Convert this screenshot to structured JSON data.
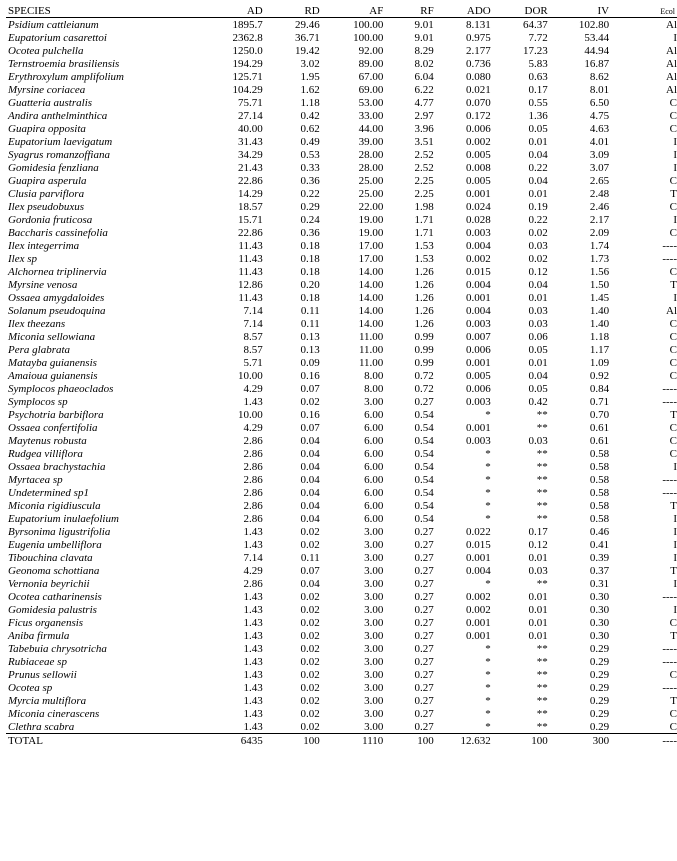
{
  "table": {
    "headers": {
      "species": "SPECIES",
      "ad": "AD",
      "rd": "RD",
      "af": "AF",
      "rf": "RF",
      "ado": "ADO",
      "dor": "DOR",
      "iv": "IV",
      "ecol": "Ecol"
    },
    "rows": [
      {
        "species": "Psidium cattleianum",
        "ad": "1895.7",
        "rd": "29.46",
        "af": "100.00",
        "rf": "9.01",
        "ado": "8.131",
        "dor": "64.37",
        "iv": "102.80",
        "ecol": "Al"
      },
      {
        "species": "Eupatorium casarettoi",
        "ad": "2362.8",
        "rd": "36.71",
        "af": "100.00",
        "rf": "9.01",
        "ado": "0.975",
        "dor": "7.72",
        "iv": "53.44",
        "ecol": "I"
      },
      {
        "species": "Ocotea pulchella",
        "ad": "1250.0",
        "rd": "19.42",
        "af": "92.00",
        "rf": "8.29",
        "ado": "2.177",
        "dor": "17.23",
        "iv": "44.94",
        "ecol": "Al"
      },
      {
        "species": "Ternstroemia brasiliensis",
        "ad": "194.29",
        "rd": "3.02",
        "af": "89.00",
        "rf": "8.02",
        "ado": "0.736",
        "dor": "5.83",
        "iv": "16.87",
        "ecol": "Al"
      },
      {
        "species": "Erythroxylum amplifolium",
        "ad": "125.71",
        "rd": "1.95",
        "af": "67.00",
        "rf": "6.04",
        "ado": "0.080",
        "dor": "0.63",
        "iv": "8.62",
        "ecol": "Al"
      },
      {
        "species": "Myrsine coriacea",
        "ad": "104.29",
        "rd": "1.62",
        "af": "69.00",
        "rf": "6.22",
        "ado": "0.021",
        "dor": "0.17",
        "iv": "8.01",
        "ecol": "Al"
      },
      {
        "species": "Guatteria australis",
        "ad": "75.71",
        "rd": "1.18",
        "af": "53.00",
        "rf": "4.77",
        "ado": "0.070",
        "dor": "0.55",
        "iv": "6.50",
        "ecol": "C"
      },
      {
        "species": "Andira anthelminthica",
        "ad": "27.14",
        "rd": "0.42",
        "af": "33.00",
        "rf": "2.97",
        "ado": "0.172",
        "dor": "1.36",
        "iv": "4.75",
        "ecol": "C"
      },
      {
        "species": "Guapira opposita",
        "ad": "40.00",
        "rd": "0.62",
        "af": "44.00",
        "rf": "3.96",
        "ado": "0.006",
        "dor": "0.05",
        "iv": "4.63",
        "ecol": "C"
      },
      {
        "species": "Eupatorium laevigatum",
        "ad": "31.43",
        "rd": "0.49",
        "af": "39.00",
        "rf": "3.51",
        "ado": "0.002",
        "dor": "0.01",
        "iv": "4.01",
        "ecol": "I"
      },
      {
        "species": "Syagrus romanzoffiana",
        "ad": "34.29",
        "rd": "0.53",
        "af": "28.00",
        "rf": "2.52",
        "ado": "0.005",
        "dor": "0.04",
        "iv": "3.09",
        "ecol": "I"
      },
      {
        "species": "Gomidesia fenzliana",
        "ad": "21.43",
        "rd": "0.33",
        "af": "28.00",
        "rf": "2.52",
        "ado": "0.008",
        "dor": "0.22",
        "iv": "3.07",
        "ecol": "I"
      },
      {
        "species": "Guapira asperula",
        "ad": "22.86",
        "rd": "0.36",
        "af": "25.00",
        "rf": "2.25",
        "ado": "0.005",
        "dor": "0.04",
        "iv": "2.65",
        "ecol": "C"
      },
      {
        "species": "Clusia parviflora",
        "ad": "14.29",
        "rd": "0.22",
        "af": "25.00",
        "rf": "2.25",
        "ado": "0.001",
        "dor": "0.01",
        "iv": "2.48",
        "ecol": "T"
      },
      {
        "species": "Ilex pseudobuxus",
        "ad": "18.57",
        "rd": "0.29",
        "af": "22.00",
        "rf": "1.98",
        "ado": "0.024",
        "dor": "0.19",
        "iv": "2.46",
        "ecol": "C"
      },
      {
        "species": "Gordonia fruticosa",
        "ad": "15.71",
        "rd": "0.24",
        "af": "19.00",
        "rf": "1.71",
        "ado": "0.028",
        "dor": "0.22",
        "iv": "2.17",
        "ecol": "I"
      },
      {
        "species": "Baccharis cassinefolia",
        "ad": "22.86",
        "rd": "0.36",
        "af": "19.00",
        "rf": "1.71",
        "ado": "0.003",
        "dor": "0.02",
        "iv": "2.09",
        "ecol": "C"
      },
      {
        "species": "Ilex integerrima",
        "ad": "11.43",
        "rd": "0.18",
        "af": "17.00",
        "rf": "1.53",
        "ado": "0.004",
        "dor": "0.03",
        "iv": "1.74",
        "ecol": "----"
      },
      {
        "species": "Ilex sp",
        "ad": "11.43",
        "rd": "0.18",
        "af": "17.00",
        "rf": "1.53",
        "ado": "0.002",
        "dor": "0.02",
        "iv": "1.73",
        "ecol": "----"
      },
      {
        "species": "Alchornea triplinervia",
        "ad": "11.43",
        "rd": "0.18",
        "af": "14.00",
        "rf": "1.26",
        "ado": "0.015",
        "dor": "0.12",
        "iv": "1.56",
        "ecol": "C"
      },
      {
        "species": "Myrsine venosa",
        "ad": "12.86",
        "rd": "0.20",
        "af": "14.00",
        "rf": "1.26",
        "ado": "0.004",
        "dor": "0.04",
        "iv": "1.50",
        "ecol": "T"
      },
      {
        "species": "Ossaea amygdaloides",
        "ad": "11.43",
        "rd": "0.18",
        "af": "14.00",
        "rf": "1.26",
        "ado": "0.001",
        "dor": "0.01",
        "iv": "1.45",
        "ecol": "I"
      },
      {
        "species": "Solanum pseudoquina",
        "ad": "7.14",
        "rd": "0.11",
        "af": "14.00",
        "rf": "1.26",
        "ado": "0.004",
        "dor": "0.03",
        "iv": "1.40",
        "ecol": "Al"
      },
      {
        "species": "Ilex theezans",
        "ad": "7.14",
        "rd": "0.11",
        "af": "14.00",
        "rf": "1.26",
        "ado": "0.003",
        "dor": "0.03",
        "iv": "1.40",
        "ecol": "C"
      },
      {
        "species": "Miconia sellowiana",
        "ad": "8.57",
        "rd": "0.13",
        "af": "11.00",
        "rf": "0.99",
        "ado": "0.007",
        "dor": "0.06",
        "iv": "1.18",
        "ecol": "C"
      },
      {
        "species": "Pera glabrata",
        "ad": "8.57",
        "rd": "0.13",
        "af": "11.00",
        "rf": "0.99",
        "ado": "0.006",
        "dor": "0.05",
        "iv": "1.17",
        "ecol": "C"
      },
      {
        "species": "Matayba guianensis",
        "ad": "5.71",
        "rd": "0.09",
        "af": "11.00",
        "rf": "0.99",
        "ado": "0.001",
        "dor": "0.01",
        "iv": "1.09",
        "ecol": "C"
      },
      {
        "species": "Amaioua guianensis",
        "ad": "10.00",
        "rd": "0.16",
        "af": "8.00",
        "rf": "0.72",
        "ado": "0.005",
        "dor": "0.04",
        "iv": "0.92",
        "ecol": "C"
      },
      {
        "species": "Symplocos phaeoclados",
        "ad": "4.29",
        "rd": "0.07",
        "af": "8.00",
        "rf": "0.72",
        "ado": "0.006",
        "dor": "0.05",
        "iv": "0.84",
        "ecol": "----"
      },
      {
        "species": "Symplocos sp",
        "ad": "1.43",
        "rd": "0.02",
        "af": "3.00",
        "rf": "0.27",
        "ado": "0.003",
        "dor": "0.42",
        "iv": "0.71",
        "ecol": "----"
      },
      {
        "species": "Psychotria barbiflora",
        "ad": "10.00",
        "rd": "0.16",
        "af": "6.00",
        "rf": "0.54",
        "ado": "*",
        "dor": "**",
        "iv": "0.70",
        "ecol": "T"
      },
      {
        "species": "Ossaea confertifolia",
        "ad": "4.29",
        "rd": "0.07",
        "af": "6.00",
        "rf": "0.54",
        "ado": "0.001",
        "dor": "**",
        "iv": "0.61",
        "ecol": "C"
      },
      {
        "species": "Maytenus robusta",
        "ad": "2.86",
        "rd": "0.04",
        "af": "6.00",
        "rf": "0.54",
        "ado": "0.003",
        "dor": "0.03",
        "iv": "0.61",
        "ecol": "C"
      },
      {
        "species": "Rudgea villiflora",
        "ad": "2.86",
        "rd": "0.04",
        "af": "6.00",
        "rf": "0.54",
        "ado": "*",
        "dor": "**",
        "iv": "0.58",
        "ecol": "C"
      },
      {
        "species": "Ossaea brachystachia",
        "ad": "2.86",
        "rd": "0.04",
        "af": "6.00",
        "rf": "0.54",
        "ado": "*",
        "dor": "**",
        "iv": "0.58",
        "ecol": "I"
      },
      {
        "species": "Myrtacea sp",
        "ad": "2.86",
        "rd": "0.04",
        "af": "6.00",
        "rf": "0.54",
        "ado": "*",
        "dor": "**",
        "iv": "0.58",
        "ecol": "----"
      },
      {
        "species": "Undetermined sp1",
        "ad": "2.86",
        "rd": "0.04",
        "af": "6.00",
        "rf": "0.54",
        "ado": "*",
        "dor": "**",
        "iv": "0.58",
        "ecol": "----"
      },
      {
        "species": "Miconia rigidiuscula",
        "ad": "2.86",
        "rd": "0.04",
        "af": "6.00",
        "rf": "0.54",
        "ado": "*",
        "dor": "**",
        "iv": "0.58",
        "ecol": "T"
      },
      {
        "species": "Eupatorium inulaefolium",
        "ad": "2.86",
        "rd": "0.04",
        "af": "6.00",
        "rf": "0.54",
        "ado": "*",
        "dor": "**",
        "iv": "0.58",
        "ecol": "I"
      },
      {
        "species": "Byrsonima ligustrifolia",
        "ad": "1.43",
        "rd": "0.02",
        "af": "3.00",
        "rf": "0.27",
        "ado": "0.022",
        "dor": "0.17",
        "iv": "0.46",
        "ecol": "I"
      },
      {
        "species": "Eugenia umbelliflora",
        "ad": "1.43",
        "rd": "0.02",
        "af": "3.00",
        "rf": "0.27",
        "ado": "0.015",
        "dor": "0.12",
        "iv": "0.41",
        "ecol": "I"
      },
      {
        "species": "Tibouchina clavata",
        "ad": "7.14",
        "rd": "0.11",
        "af": "3.00",
        "rf": "0.27",
        "ado": "0.001",
        "dor": "0.01",
        "iv": "0.39",
        "ecol": "I"
      },
      {
        "species": "Geonoma schottiana",
        "ad": "4.29",
        "rd": "0.07",
        "af": "3.00",
        "rf": "0.27",
        "ado": "0.004",
        "dor": "0.03",
        "iv": "0.37",
        "ecol": "T"
      },
      {
        "species": "Vernonia beyrichii",
        "ad": "2.86",
        "rd": "0.04",
        "af": "3.00",
        "rf": "0.27",
        "ado": "*",
        "dor": "**",
        "iv": "0.31",
        "ecol": "I"
      },
      {
        "species": "Ocotea catharinensis",
        "ad": "1.43",
        "rd": "0.02",
        "af": "3.00",
        "rf": "0.27",
        "ado": "0.002",
        "dor": "0.01",
        "iv": "0.30",
        "ecol": "----"
      },
      {
        "species": "Gomidesia palustris",
        "ad": "1.43",
        "rd": "0.02",
        "af": "3.00",
        "rf": "0.27",
        "ado": "0.002",
        "dor": "0.01",
        "iv": "0.30",
        "ecol": "I"
      },
      {
        "species": "Ficus organensis",
        "ad": "1.43",
        "rd": "0.02",
        "af": "3.00",
        "rf": "0.27",
        "ado": "0.001",
        "dor": "0.01",
        "iv": "0.30",
        "ecol": "C"
      },
      {
        "species": "Aniba firmula",
        "ad": "1.43",
        "rd": "0.02",
        "af": "3.00",
        "rf": "0.27",
        "ado": "0.001",
        "dor": "0.01",
        "iv": "0.30",
        "ecol": "T"
      },
      {
        "species": "Tabebuia chrysotricha",
        "ad": "1.43",
        "rd": "0.02",
        "af": "3.00",
        "rf": "0.27",
        "ado": "*",
        "dor": "**",
        "iv": "0.29",
        "ecol": "----"
      },
      {
        "species": "Rubiaceae sp",
        "ad": "1.43",
        "rd": "0.02",
        "af": "3.00",
        "rf": "0.27",
        "ado": "*",
        "dor": "**",
        "iv": "0.29",
        "ecol": "----"
      },
      {
        "species": "Prunus sellowii",
        "ad": "1.43",
        "rd": "0.02",
        "af": "3.00",
        "rf": "0.27",
        "ado": "*",
        "dor": "**",
        "iv": "0.29",
        "ecol": "C"
      },
      {
        "species": "Ocotea sp",
        "ad": "1.43",
        "rd": "0.02",
        "af": "3.00",
        "rf": "0.27",
        "ado": "*",
        "dor": "**",
        "iv": "0.29",
        "ecol": "----"
      },
      {
        "species": "Myrcia multiflora",
        "ad": "1.43",
        "rd": "0.02",
        "af": "3.00",
        "rf": "0.27",
        "ado": "*",
        "dor": "**",
        "iv": "0.29",
        "ecol": "T"
      },
      {
        "species": "Miconia cinerascens",
        "ad": "1.43",
        "rd": "0.02",
        "af": "3.00",
        "rf": "0.27",
        "ado": "*",
        "dor": "**",
        "iv": "0.29",
        "ecol": "C"
      },
      {
        "species": "Clethra scabra",
        "ad": "1.43",
        "rd": "0.02",
        "af": "3.00",
        "rf": "0.27",
        "ado": "*",
        "dor": "**",
        "iv": "0.29",
        "ecol": "C"
      }
    ],
    "total": {
      "species": "TOTAL",
      "ad": "6435",
      "rd": "100",
      "af": "1110",
      "rf": "100",
      "ado": "12.632",
      "dor": "100",
      "iv": "300",
      "ecol": "----"
    }
  }
}
